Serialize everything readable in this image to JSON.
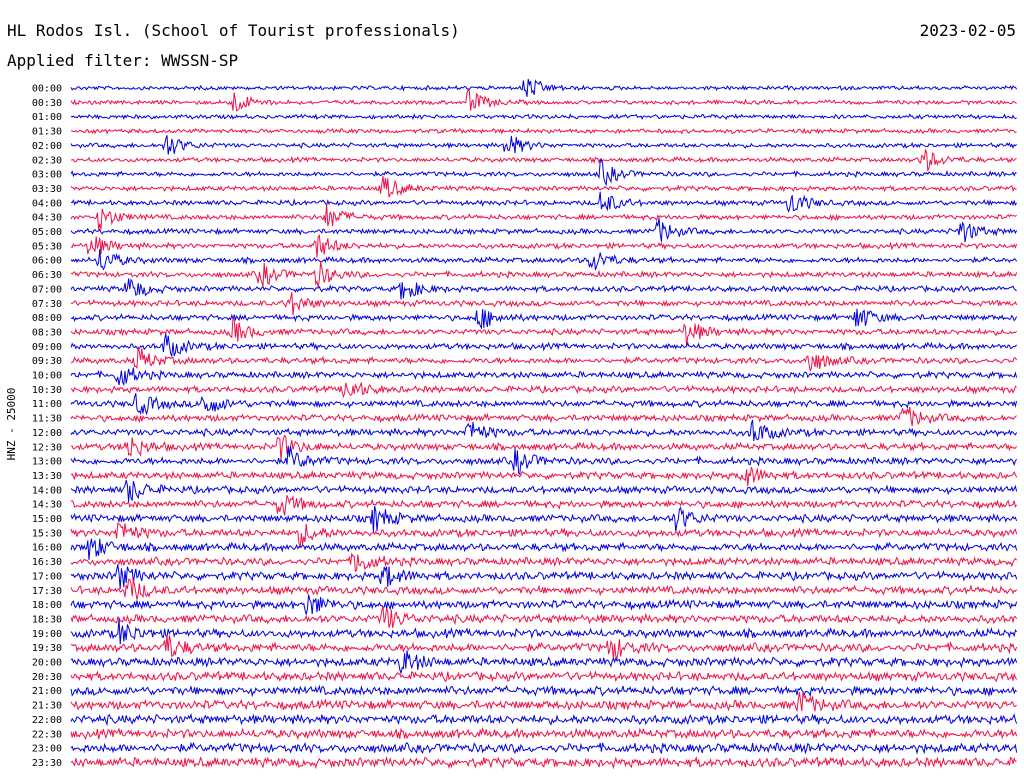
{
  "header": {
    "station": "HL Rodos Isl. (School of Tourist professionals)",
    "date": "2023-02-05",
    "filter": "Applied filter: WWSSN-SP"
  },
  "chart_data": {
    "type": "line",
    "chart_kind": "helicorder",
    "ylabel": "HNZ - 25000",
    "trace_colors": [
      "#0000e0",
      "#ee1146"
    ],
    "rows": [
      {
        "label": "00:00",
        "events": [
          0.48
        ]
      },
      {
        "label": "00:30",
        "events": [
          0.17,
          0.42
        ]
      },
      {
        "label": "01:00",
        "events": []
      },
      {
        "label": "01:30",
        "events": []
      },
      {
        "label": "02:00",
        "events": [
          0.1,
          0.46
        ]
      },
      {
        "label": "02:30",
        "events": [
          0.9
        ]
      },
      {
        "label": "03:00",
        "events": [
          0.56
        ]
      },
      {
        "label": "03:30",
        "events": [
          0.33
        ]
      },
      {
        "label": "04:00",
        "events": [
          0.56,
          0.76
        ]
      },
      {
        "label": "04:30",
        "events": [
          0.03,
          0.27
        ]
      },
      {
        "label": "05:00",
        "events": [
          0.62,
          0.94
        ]
      },
      {
        "label": "05:30",
        "events": [
          0.02,
          0.26
        ]
      },
      {
        "label": "06:00",
        "events": [
          0.03,
          0.55
        ]
      },
      {
        "label": "06:30",
        "events": [
          0.2,
          0.26
        ]
      },
      {
        "label": "07:00",
        "events": [
          0.06,
          0.35
        ]
      },
      {
        "label": "07:30",
        "events": [
          0.23
        ]
      },
      {
        "label": "08:00",
        "events": [
          0.43,
          0.83
        ]
      },
      {
        "label": "08:30",
        "events": [
          0.17,
          0.65
        ]
      },
      {
        "label": "09:00",
        "events": [
          0.1
        ]
      },
      {
        "label": "09:30",
        "events": [
          0.07,
          0.78
        ]
      },
      {
        "label": "10:00",
        "events": [
          0.05
        ]
      },
      {
        "label": "10:30",
        "events": [
          0.29
        ]
      },
      {
        "label": "11:00",
        "events": [
          0.07,
          0.14
        ]
      },
      {
        "label": "11:30",
        "events": [
          0.88
        ]
      },
      {
        "label": "12:00",
        "events": [
          0.42,
          0.72
        ]
      },
      {
        "label": "12:30",
        "events": [
          0.06,
          0.22
        ]
      },
      {
        "label": "13:00",
        "events": [
          0.23,
          0.47
        ]
      },
      {
        "label": "13:30",
        "events": [
          0.71
        ]
      },
      {
        "label": "14:00",
        "events": [
          0.06
        ]
      },
      {
        "label": "14:30",
        "events": [
          0.22
        ]
      },
      {
        "label": "15:00",
        "events": [
          0.32,
          0.64
        ]
      },
      {
        "label": "15:30",
        "events": [
          0.05,
          0.24
        ]
      },
      {
        "label": "16:00",
        "events": [
          0.02
        ]
      },
      {
        "label": "16:30",
        "events": [
          0.3
        ]
      },
      {
        "label": "17:00",
        "events": [
          0.05,
          0.33
        ]
      },
      {
        "label": "17:30",
        "events": [
          0.06
        ]
      },
      {
        "label": "18:00",
        "events": [
          0.25
        ]
      },
      {
        "label": "18:30",
        "events": [
          0.33
        ]
      },
      {
        "label": "19:00",
        "events": [
          0.05
        ]
      },
      {
        "label": "19:30",
        "events": [
          0.1,
          0.57
        ]
      },
      {
        "label": "20:00",
        "events": [
          0.35
        ]
      },
      {
        "label": "20:30",
        "events": []
      },
      {
        "label": "21:00",
        "events": []
      },
      {
        "label": "21:30",
        "events": [
          0.77
        ]
      },
      {
        "label": "22:00",
        "events": []
      },
      {
        "label": "22:30",
        "events": []
      },
      {
        "label": "23:00",
        "events": []
      },
      {
        "label": "23:30",
        "events": []
      }
    ]
  }
}
